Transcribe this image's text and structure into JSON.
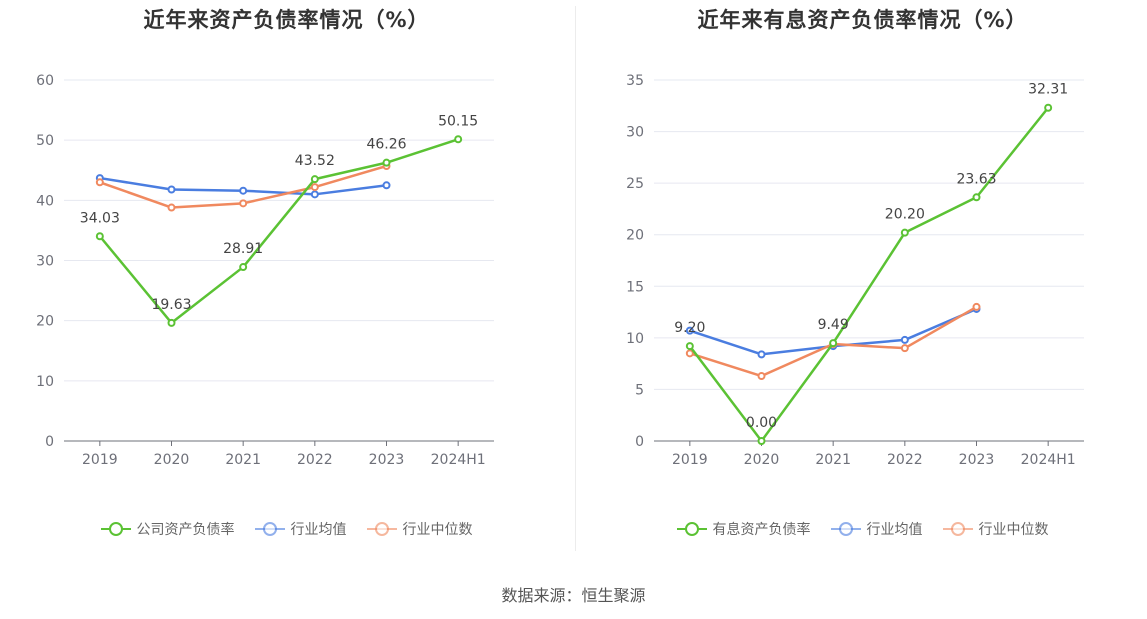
{
  "source": "数据来源：恒生聚源",
  "colors": {
    "company": "#5bc234",
    "avg": "#4a7de0",
    "median": "#f0895f"
  },
  "chart_data": [
    {
      "type": "line",
      "title": "近年来资产负债率情况（%）",
      "categories": [
        "2019",
        "2020",
        "2021",
        "2022",
        "2023",
        "2024H1"
      ],
      "ylim": [
        0,
        60
      ],
      "yticks": [
        0,
        10,
        20,
        30,
        40,
        50,
        60
      ],
      "grid": true,
      "legend_position": "bottom",
      "series": [
        {
          "name": "公司资产负债率",
          "color": "#5bc234",
          "values": [
            34.03,
            19.63,
            28.91,
            43.52,
            46.26,
            50.15
          ],
          "labels": [
            "34.03",
            "19.63",
            "28.91",
            "43.52",
            "46.26",
            "50.15"
          ]
        },
        {
          "name": "行业均值",
          "color": "#4a7de0",
          "values": [
            43.7,
            41.8,
            41.6,
            41.0,
            42.5,
            null
          ]
        },
        {
          "name": "行业中位数",
          "color": "#f0895f",
          "values": [
            43.0,
            38.8,
            39.5,
            42.2,
            45.7,
            null
          ]
        }
      ]
    },
    {
      "type": "line",
      "title": "近年来有息资产负债率情况（%）",
      "categories": [
        "2019",
        "2020",
        "2021",
        "2022",
        "2023",
        "2024H1"
      ],
      "ylim": [
        0,
        35
      ],
      "yticks": [
        0,
        5,
        10,
        15,
        20,
        25,
        30,
        35
      ],
      "grid": true,
      "legend_position": "bottom",
      "series": [
        {
          "name": "有息资产负债率",
          "color": "#5bc234",
          "values": [
            9.2,
            0.0,
            9.49,
            20.2,
            23.63,
            32.31
          ],
          "labels": [
            "9.20",
            "0.00",
            "9.49",
            "20.20",
            "23.63",
            "32.31"
          ]
        },
        {
          "name": "行业均值",
          "color": "#4a7de0",
          "values": [
            10.7,
            8.4,
            9.2,
            9.8,
            12.8,
            null
          ]
        },
        {
          "name": "行业中位数",
          "color": "#f0895f",
          "values": [
            8.5,
            6.3,
            9.4,
            9.0,
            13.0,
            null
          ]
        }
      ]
    }
  ]
}
